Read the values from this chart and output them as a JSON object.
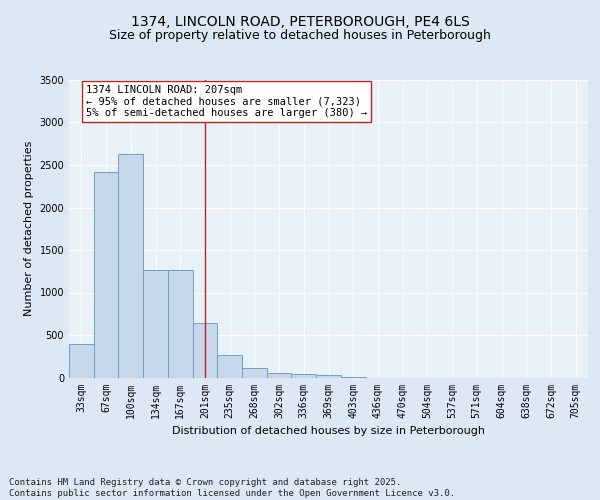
{
  "title1": "1374, LINCOLN ROAD, PETERBOROUGH, PE4 6LS",
  "title2": "Size of property relative to detached houses in Peterborough",
  "xlabel": "Distribution of detached houses by size in Peterborough",
  "ylabel": "Number of detached properties",
  "categories": [
    "33sqm",
    "67sqm",
    "100sqm",
    "134sqm",
    "167sqm",
    "201sqm",
    "235sqm",
    "268sqm",
    "302sqm",
    "336sqm",
    "369sqm",
    "403sqm",
    "436sqm",
    "470sqm",
    "504sqm",
    "537sqm",
    "571sqm",
    "604sqm",
    "638sqm",
    "672sqm",
    "705sqm"
  ],
  "values": [
    390,
    2420,
    2630,
    1260,
    1260,
    640,
    260,
    110,
    55,
    45,
    30,
    5,
    0,
    0,
    0,
    0,
    0,
    0,
    0,
    0,
    0
  ],
  "bar_color": "#c8d8eb",
  "bar_edge_color": "#6fa0c8",
  "vline_color": "#bb2222",
  "annotation_text": "1374 LINCOLN ROAD: 207sqm\n← 95% of detached houses are smaller (7,323)\n5% of semi-detached houses are larger (380) →",
  "annotation_box_color": "#ffffff",
  "annotation_box_edge": "#bb2222",
  "ylim": [
    0,
    3500
  ],
  "yticks": [
    0,
    500,
    1000,
    1500,
    2000,
    2500,
    3000,
    3500
  ],
  "bg_color": "#dce8f4",
  "plot_bg_color": "#e8f0f8",
  "grid_color": "#ffffff",
  "footer": "Contains HM Land Registry data © Crown copyright and database right 2025.\nContains public sector information licensed under the Open Government Licence v3.0.",
  "title_fontsize": 10,
  "subtitle_fontsize": 9,
  "axis_label_fontsize": 8,
  "tick_fontsize": 7,
  "annotation_fontsize": 7.5,
  "footer_fontsize": 6.5,
  "vline_x": 5.0
}
